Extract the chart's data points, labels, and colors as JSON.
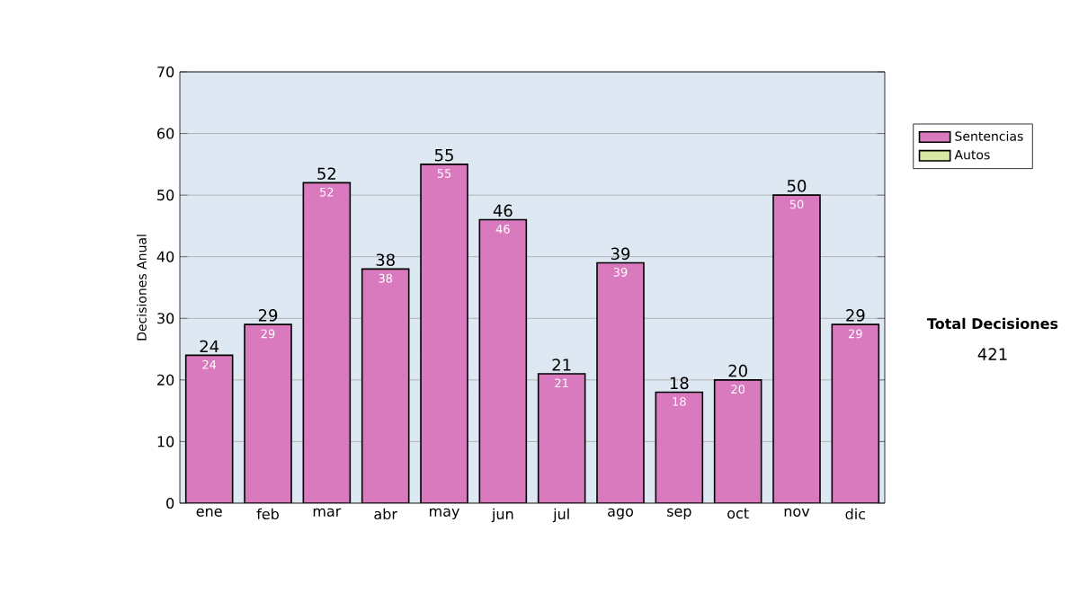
{
  "chart_data": {
    "type": "bar",
    "stacked": true,
    "ylabel": "Decisiones Anual",
    "categories": [
      "ene",
      "feb",
      "mar",
      "abr",
      "may",
      "jun",
      "jul",
      "ago",
      "sep",
      "oct",
      "nov",
      "dic"
    ],
    "series": [
      {
        "name": "Sentencias",
        "color": "#d97abf",
        "values": [
          24,
          29,
          52,
          38,
          55,
          46,
          21,
          39,
          18,
          20,
          50,
          29
        ],
        "value_labels": [
          "24",
          "29",
          "52",
          "38",
          "55",
          "46",
          "21",
          "39",
          "18",
          "20",
          "50",
          "29"
        ]
      },
      {
        "name": "Autos",
        "color": "#d6e8a2",
        "values": [
          0,
          0,
          0,
          0,
          0,
          0,
          0,
          0,
          0,
          0,
          0,
          0
        ]
      }
    ],
    "totals": [
      "24",
      "29",
      "52",
      "38",
      "55",
      "46",
      "21",
      "39",
      "18",
      "20",
      "50",
      "29"
    ],
    "ylim": [
      0,
      70
    ],
    "yticks": [
      0,
      10,
      20,
      30,
      40,
      50,
      60,
      70
    ],
    "grid": "y",
    "legend": "right",
    "annotations": [
      "Total Decisiones",
      "421"
    ]
  }
}
